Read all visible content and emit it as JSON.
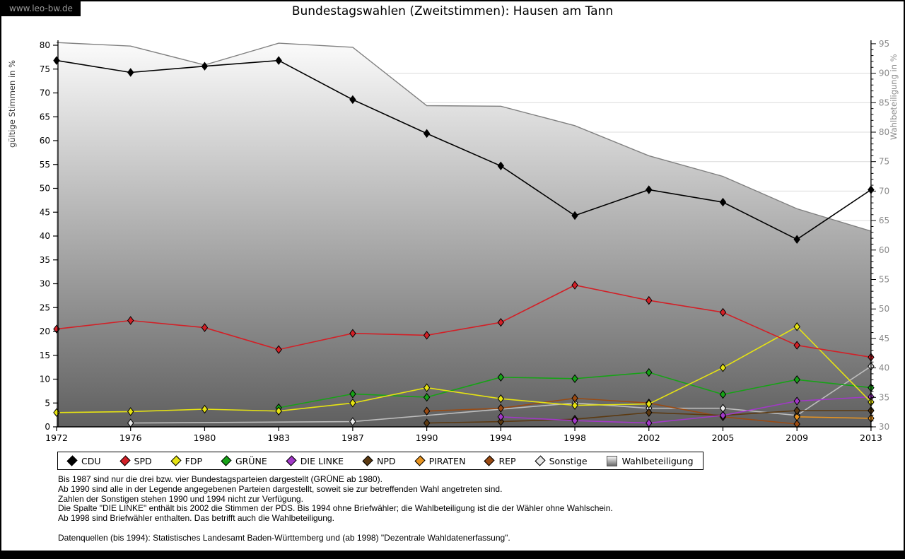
{
  "watermark": "www.leo-bw.de",
  "title": "Bundestagswahlen (Zweitstimmen): Hausen am Tann",
  "axes": {
    "left_label": "gültige Stimmen in %",
    "right_label": "Wahlbeteiligung in %"
  },
  "chart_data": {
    "type": "line",
    "x": [
      1972,
      1976,
      1980,
      1983,
      1987,
      1990,
      1994,
      1998,
      2002,
      2005,
      2009,
      2013
    ],
    "y_left": {
      "label": "gültige Stimmen in %",
      "min": 0,
      "max": 80,
      "step": 5
    },
    "y_right": {
      "label": "Wahlbeteiligung in %",
      "min": 30,
      "max": 95,
      "step": 5
    },
    "grid": "horizontal, every 5 units of right axis",
    "legend_position": "bottom",
    "series": [
      {
        "name": "CDU",
        "color": "#000000",
        "axis": "left",
        "style": "line",
        "values": [
          76.8,
          74.3,
          75.6,
          76.8,
          68.6,
          61.5,
          54.7,
          44.3,
          49.7,
          47.1,
          39.3,
          49.7
        ]
      },
      {
        "name": "SPD",
        "color": "#d22027",
        "axis": "left",
        "style": "line",
        "values": [
          20.5,
          22.3,
          20.8,
          16.2,
          19.6,
          19.2,
          21.9,
          29.7,
          26.5,
          24.0,
          17.1,
          14.6
        ]
      },
      {
        "name": "FDP",
        "color": "#e6e312",
        "axis": "left",
        "style": "line",
        "values": [
          3.0,
          3.2,
          3.7,
          3.3,
          5.0,
          8.2,
          5.9,
          4.5,
          4.8,
          12.4,
          21.0,
          5.2
        ]
      },
      {
        "name": "GRÜNE",
        "color": "#17a217",
        "axis": "left",
        "style": "line",
        "values": [
          null,
          null,
          null,
          4.0,
          6.9,
          6.2,
          10.4,
          10.1,
          11.4,
          6.8,
          9.9,
          8.2
        ]
      },
      {
        "name": "DIE LINKE",
        "color": "#a238c8",
        "axis": "left",
        "style": "line",
        "values": [
          null,
          null,
          null,
          null,
          null,
          null,
          2.1,
          1.3,
          0.8,
          2.4,
          5.4,
          6.3
        ]
      },
      {
        "name": "NPD",
        "color": "#5c3a11",
        "axis": "left",
        "style": "line",
        "values": [
          null,
          null,
          null,
          null,
          null,
          0.8,
          1.1,
          1.6,
          3.0,
          2.4,
          3.4,
          3.4
        ]
      },
      {
        "name": "PIRATEN",
        "color": "#e89420",
        "axis": "left",
        "style": "line",
        "values": [
          null,
          null,
          null,
          null,
          null,
          null,
          null,
          null,
          null,
          null,
          2.1,
          1.8
        ]
      },
      {
        "name": "REP",
        "color": "#9a4a12",
        "axis": "left",
        "style": "line",
        "values": [
          null,
          null,
          null,
          null,
          null,
          3.3,
          3.9,
          6.0,
          5.0,
          2.1,
          0.6,
          null
        ]
      },
      {
        "name": "Sonstige",
        "color": "#bdbdbd",
        "marker_fill": "#e8e8e8",
        "axis": "left",
        "style": "line",
        "values": [
          null,
          0.8,
          null,
          null,
          1.1,
          null,
          null,
          5.0,
          3.9,
          3.9,
          2.4,
          12.7
        ]
      },
      {
        "name": "Wahlbeteiligung",
        "color": "#808080",
        "axis": "right",
        "style": "area",
        "fill_gradient": [
          "#fcfcfc",
          "#5f5f5f"
        ],
        "values": [
          95.2,
          94.6,
          91.4,
          95.1,
          94.4,
          84.5,
          84.4,
          81.1,
          76.0,
          72.5,
          67.0,
          63.2
        ]
      }
    ]
  },
  "footnotes": [
    "Bis 1987 sind nur die drei bzw. vier Bundestagsparteien dargestellt (GRÜNE ab 1980).",
    "Ab 1990 sind alle in der Legende angegebenen Parteien dargestellt, soweit sie zur betreffenden Wahl angetreten sind.",
    "Zahlen der Sonstigen stehen 1990 und 1994 nicht zur Verfügung.",
    "Die Spalte \"DIE LINKE\" enthält bis 2002 die Stimmen der PDS. Bis 1994 ohne Briefwähler; die Wahlbeteiligung ist die der Wähler ohne Wahlschein.",
    "Ab 1998 sind Briefwähler enthalten. Das betrifft auch die Wahlbeteiligung.",
    "",
    "Datenquellen (bis 1994): Statistisches Landesamt Baden-Württemberg und (ab 1998) \"Dezentrale Wahldatenerfassung\"."
  ]
}
